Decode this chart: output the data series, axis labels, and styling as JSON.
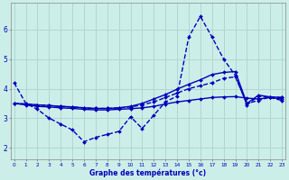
{
  "title": "Graphe des températures (°c)",
  "background_color": "#cceee8",
  "grid_color": "#aad4cc",
  "line_color": "#0000bb",
  "x_ticks": [
    0,
    1,
    2,
    3,
    4,
    5,
    6,
    7,
    8,
    9,
    10,
    11,
    12,
    13,
    14,
    15,
    16,
    17,
    18,
    19,
    20,
    21,
    22,
    23
  ],
  "x_tick_labels": [
    "0",
    "1",
    "2",
    "3",
    "4",
    "5",
    "6",
    "7",
    "8",
    "9",
    "10",
    "11",
    "12",
    "13",
    "14",
    "15",
    "16",
    "17",
    "18",
    "19",
    "20",
    "21",
    "22",
    "23"
  ],
  "y_ticks": [
    2,
    3,
    4,
    5,
    6
  ],
  "ylim": [
    1.6,
    6.9
  ],
  "xlim": [
    -0.3,
    23.3
  ],
  "lines": [
    {
      "x": [
        0,
        1,
        2,
        3,
        4,
        5,
        6,
        7,
        8,
        9,
        10,
        11,
        12,
        13,
        14,
        15,
        16,
        17,
        18,
        19,
        20,
        21,
        22,
        23
      ],
      "y": [
        4.2,
        3.5,
        3.3,
        3.0,
        2.8,
        2.6,
        2.2,
        2.35,
        2.45,
        2.55,
        3.05,
        2.65,
        3.1,
        3.55,
        3.75,
        5.75,
        6.45,
        5.75,
        5.0,
        4.45,
        3.45,
        3.75,
        3.7,
        3.6
      ],
      "style": "--",
      "marker": "D",
      "markersize": 2.0,
      "linewidth": 1.0
    },
    {
      "x": [
        0,
        1,
        2,
        3,
        4,
        5,
        6,
        7,
        8,
        9,
        10,
        11,
        12,
        13,
        14,
        15,
        16,
        17,
        18,
        19,
        20,
        21,
        22,
        23
      ],
      "y": [
        3.5,
        3.45,
        3.4,
        3.38,
        3.35,
        3.33,
        3.3,
        3.28,
        3.28,
        3.3,
        3.32,
        3.35,
        3.4,
        3.48,
        3.55,
        3.6,
        3.65,
        3.7,
        3.72,
        3.73,
        3.68,
        3.65,
        3.7,
        3.65
      ],
      "style": "-",
      "marker": "D",
      "markersize": 2.0,
      "linewidth": 1.0
    },
    {
      "x": [
        0,
        1,
        2,
        3,
        4,
        5,
        6,
        7,
        8,
        9,
        10,
        11,
        12,
        13,
        14,
        15,
        16,
        17,
        18,
        19,
        20,
        21,
        22,
        23
      ],
      "y": [
        3.5,
        3.48,
        3.45,
        3.43,
        3.4,
        3.38,
        3.35,
        3.33,
        3.33,
        3.35,
        3.38,
        3.45,
        3.55,
        3.7,
        3.85,
        4.0,
        4.1,
        4.2,
        4.35,
        4.4,
        3.5,
        3.6,
        3.72,
        3.7
      ],
      "style": "--",
      "marker": "D",
      "markersize": 2.0,
      "linewidth": 1.0
    },
    {
      "x": [
        0,
        1,
        2,
        3,
        4,
        5,
        6,
        7,
        8,
        9,
        10,
        11,
        12,
        13,
        14,
        15,
        16,
        17,
        18,
        19,
        20,
        21,
        22,
        23
      ],
      "y": [
        3.5,
        3.48,
        3.45,
        3.43,
        3.4,
        3.38,
        3.35,
        3.33,
        3.33,
        3.35,
        3.4,
        3.5,
        3.65,
        3.8,
        3.98,
        4.15,
        4.3,
        4.48,
        4.55,
        4.58,
        3.5,
        3.78,
        3.72,
        3.7
      ],
      "style": "-",
      "marker": "D",
      "markersize": 2.0,
      "linewidth": 1.0
    }
  ]
}
